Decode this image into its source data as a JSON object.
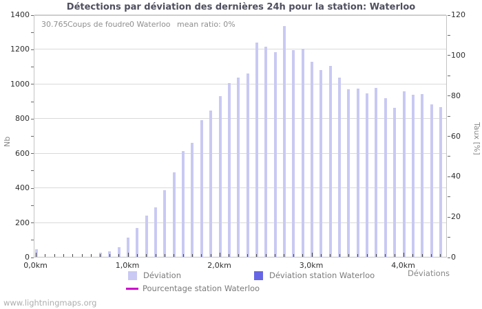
{
  "title": "Détections par déviation des dernières 24h pour la station: Waterloo",
  "info": {
    "total": "30.765",
    "total_label": "Coups de foudre",
    "station": "0 Waterloo",
    "mean_ratio": "mean ratio: 0%"
  },
  "watermark": "www.lightningmaps.org",
  "chart_data": {
    "type": "bar",
    "title": "Détections par déviation des dernières 24h pour la station: Waterloo",
    "x_km": [
      0.0,
      0.1,
      0.2,
      0.3,
      0.4,
      0.5,
      0.6,
      0.7,
      0.8,
      0.9,
      1.0,
      1.1,
      1.2,
      1.3,
      1.4,
      1.5,
      1.6,
      1.7,
      1.8,
      1.9,
      2.0,
      2.1,
      2.2,
      2.3,
      2.4,
      2.5,
      2.6,
      2.7,
      2.8,
      2.9,
      3.0,
      3.1,
      3.2,
      3.3,
      3.4,
      3.5,
      3.6,
      3.7,
      3.8,
      3.9,
      4.0,
      4.1,
      4.2,
      4.3,
      4.4
    ],
    "series": [
      {
        "name": "Déviation",
        "color": "#c9c9f3",
        "values": [
          42,
          0,
          0,
          0,
          0,
          0,
          0,
          22,
          32,
          55,
          112,
          168,
          238,
          284,
          386,
          489,
          611,
          659,
          788,
          846,
          930,
          1005,
          1034,
          1058,
          1237,
          1213,
          1181,
          1333,
          1193,
          1201,
          1127,
          1080,
          1102,
          1035,
          969,
          973,
          943,
          975,
          915,
          862,
          956,
          935,
          939,
          880,
          864
        ]
      },
      {
        "name": "Déviation station Waterloo",
        "color": "#6666e5",
        "values": []
      },
      {
        "name": "Pourcentage station Waterloo",
        "color": "#cc00cc",
        "type": "line",
        "values": []
      }
    ],
    "left_axis": {
      "label": "Nb",
      "min": 0,
      "max": 1400,
      "tick_step": 200,
      "minor_step": 100
    },
    "right_axis": {
      "label": "Taux [%]",
      "min": 0,
      "max": 120,
      "tick_step": 20,
      "minor_step": 10
    },
    "x_axis": {
      "label": "Déviations",
      "major_tick_labels": [
        "0,0km",
        "1,0km",
        "2,0km",
        "3,0km",
        "4,0km"
      ],
      "minor_step_km": 0.1
    },
    "legend": [
      {
        "id": "deviation",
        "label": "Déviation",
        "swatch": "square",
        "color": "#c9c9f3"
      },
      {
        "id": "deviation-station",
        "label": "Déviation station Waterloo",
        "swatch": "square",
        "color": "#6666e5"
      },
      {
        "id": "percentage-station",
        "label": "Pourcentage station Waterloo",
        "swatch": "line",
        "color": "#cc00cc"
      }
    ],
    "grid": true,
    "legend_position": "bottom"
  }
}
